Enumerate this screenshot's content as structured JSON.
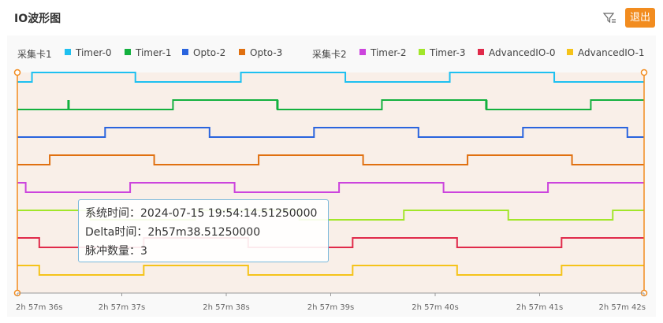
{
  "header": {
    "title": "IO波形图",
    "exit_label": "退出",
    "filter_icon": "filter-icon"
  },
  "legend": {
    "group1_label": "采集卡1",
    "group2_label": "采集卡2",
    "group1": [
      {
        "name": "Timer-0",
        "color": "#1ec0f0"
      },
      {
        "name": "Timer-1",
        "color": "#13b13e"
      },
      {
        "name": "Opto-2",
        "color": "#2a64de"
      },
      {
        "name": "Opto-3",
        "color": "#e07010"
      }
    ],
    "group2": [
      {
        "name": "Timer-2",
        "color": "#cc44dd"
      },
      {
        "name": "Timer-3",
        "color": "#a2e62a"
      },
      {
        "name": "AdvancedIO-0",
        "color": "#e02a4a"
      },
      {
        "name": "AdvancedIO-1",
        "color": "#f5c31a"
      }
    ]
  },
  "tooltip": {
    "line1": "系统时间：2024-07-15 19:54:14.51250000",
    "line2": "Delta时间：2h57m38.51250000",
    "line3": "脉冲数量：3"
  },
  "chart_data": {
    "type": "line",
    "x_unit": "s",
    "xlim": [
      36.0,
      42.0
    ],
    "x_ticks": [
      {
        "value": 36.0,
        "label": "2h 57m 36s"
      },
      {
        "value": 37.0,
        "label": "2h 57m 37s"
      },
      {
        "value": 38.0,
        "label": "2h 57m 38s"
      },
      {
        "value": 39.0,
        "label": "2h 57m 39s"
      },
      {
        "value": 40.0,
        "label": "2h 57m 40s"
      },
      {
        "value": 41.0,
        "label": "2h 57m 41s"
      },
      {
        "value": 42.0,
        "label": "2h 57m 42s"
      }
    ],
    "series": [
      {
        "name": "Timer-0",
        "color": "#1ec0f0",
        "start_high": false,
        "edges": [
          36.14,
          37.13,
          38.14,
          39.14,
          40.14,
          41.14
        ]
      },
      {
        "name": "Timer-1",
        "color": "#13b13e",
        "start_high": false,
        "edges": [
          37.49,
          38.49,
          39.49,
          40.49,
          41.49
        ],
        "pulses": [
          36.49,
          38.49,
          40.49
        ]
      },
      {
        "name": "Opto-2",
        "color": "#2a64de",
        "start_high": false,
        "edges": [
          36.84,
          37.84,
          38.84,
          39.84,
          40.84,
          41.84
        ]
      },
      {
        "name": "Opto-3",
        "color": "#e07010",
        "start_high": false,
        "edges": [
          36.31,
          37.31,
          38.31,
          39.31,
          40.31,
          41.31
        ]
      },
      {
        "name": "Timer-2",
        "color": "#cc44dd",
        "start_high": true,
        "edges": [
          36.08,
          37.08,
          38.08,
          39.08,
          40.08,
          41.08
        ]
      },
      {
        "name": "Timer-3",
        "color": "#a2e62a",
        "start_high": true,
        "edges": [
          36.7,
          37.7,
          38.7,
          39.7,
          40.7,
          41.7
        ]
      },
      {
        "name": "AdvancedIO-0",
        "color": "#e02a4a",
        "start_high": true,
        "edges": [
          36.21,
          37.21,
          38.21,
          39.21,
          40.21,
          41.21
        ]
      },
      {
        "name": "AdvancedIO-1",
        "color": "#f5c31a",
        "start_high": true,
        "edges": [
          36.21,
          37.21,
          38.21,
          39.21,
          40.21,
          41.21
        ]
      }
    ],
    "background_color": "#f9efe8",
    "cursor_color": "#f28c1f",
    "grid": false
  }
}
